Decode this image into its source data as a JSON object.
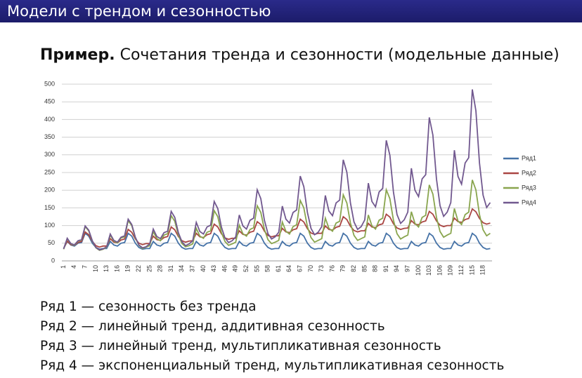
{
  "header": {
    "title": "Модели с трендом и сезонностью"
  },
  "subtitle_bold": "Пример.",
  "subtitle": "Сочетания тренда и сезонности (модельные данные)",
  "notes": [
    "Ряд 1 — сезонность без тренда",
    "Ряд 2 — линейный тренд, аддитивная сезонность",
    "Ряд 3 — линейный тренд, мультипликативная сезонность",
    "Ряд 4 — экспоненциальный тренд, мультипликативная сезонность"
  ],
  "chart_data": {
    "type": "line",
    "categories": [
      1,
      null,
      null,
      4,
      null,
      null,
      7,
      null,
      null,
      10,
      null,
      null,
      13,
      null,
      null,
      16,
      null,
      null,
      19,
      null,
      null,
      22,
      null,
      null,
      25,
      null,
      null,
      28,
      null,
      null,
      31,
      null,
      null,
      34,
      null,
      null,
      37,
      null,
      null,
      40,
      null,
      null,
      43,
      null,
      null,
      46,
      null,
      null,
      49,
      null,
      null,
      52,
      null,
      null,
      55,
      null,
      null,
      58,
      null,
      null,
      61,
      null,
      null,
      64,
      null,
      null,
      67,
      null,
      null,
      70,
      null,
      null,
      73,
      null,
      null,
      76,
      null,
      null,
      79,
      null,
      null,
      82,
      null,
      null,
      85,
      null,
      null,
      88,
      null,
      null,
      91,
      null,
      null,
      94,
      null,
      null,
      97,
      null,
      null,
      100,
      null,
      null,
      103,
      null,
      null,
      106,
      null,
      null,
      109,
      null,
      null,
      112,
      null,
      null,
      115,
      null,
      null,
      118,
      null,
      null
    ],
    "series": [
      {
        "name": "Ряд1",
        "color": "#4572a7",
        "values": [
          35,
          55,
          45,
          42,
          50,
          52,
          78,
          70,
          50,
          38,
          33,
          35,
          35,
          55,
          45,
          42,
          50,
          52,
          78,
          70,
          50,
          38,
          33,
          35,
          35,
          55,
          45,
          42,
          50,
          52,
          78,
          70,
          50,
          38,
          33,
          35,
          35,
          55,
          45,
          42,
          50,
          52,
          78,
          70,
          50,
          38,
          33,
          35,
          35,
          55,
          45,
          42,
          50,
          52,
          78,
          70,
          50,
          38,
          33,
          35,
          35,
          55,
          45,
          42,
          50,
          52,
          78,
          70,
          50,
          38,
          33,
          35,
          35,
          55,
          45,
          42,
          50,
          52,
          78,
          70,
          50,
          38,
          33,
          35,
          35,
          55,
          45,
          42,
          50,
          52,
          78,
          70,
          50,
          38,
          33,
          35,
          35,
          55,
          45,
          42,
          50,
          52,
          78,
          70,
          50,
          38,
          33,
          35,
          35,
          55,
          45,
          42,
          50,
          52,
          78,
          70,
          50,
          38,
          33,
          35
        ]
      },
      {
        "name": "Ряд2",
        "color": "#aa4643",
        "values": [
          35,
          56,
          46,
          44,
          52,
          55,
          82,
          74,
          55,
          43,
          39,
          42,
          42,
          63,
          53,
          51,
          59,
          62,
          89,
          81,
          62,
          50,
          46,
          49,
          49,
          70,
          60,
          58,
          66,
          69,
          96,
          88,
          69,
          57,
          53,
          56,
          57,
          78,
          68,
          66,
          74,
          77,
          104,
          96,
          77,
          65,
          61,
          64,
          64,
          85,
          75,
          73,
          81,
          84,
          111,
          103,
          84,
          72,
          68,
          71,
          71,
          92,
          82,
          80,
          88,
          91,
          118,
          110,
          91,
          79,
          75,
          78,
          78,
          99,
          89,
          87,
          95,
          98,
          125,
          117,
          98,
          86,
          82,
          85,
          85,
          106,
          96,
          94,
          102,
          105,
          132,
          124,
          105,
          93,
          89,
          92,
          93,
          114,
          104,
          102,
          110,
          113,
          140,
          132,
          113,
          101,
          97,
          100,
          100,
          121,
          111,
          109,
          117,
          120,
          147,
          139,
          120,
          108,
          104,
          107
        ]
      },
      {
        "name": "Ряд3",
        "color": "#89a54e",
        "values": [
          33,
          63,
          48,
          44,
          56,
          59,
          97,
          85,
          56,
          37,
          30,
          33,
          39,
          73,
          56,
          51,
          65,
          68,
          114,
          100,
          65,
          44,
          35,
          39,
          43,
          83,
          63,
          57,
          73,
          77,
          128,
          112,
          73,
          49,
          40,
          43,
          48,
          92,
          70,
          64,
          81,
          85,
          142,
          125,
          81,
          55,
          44,
          48,
          53,
          101,
          77,
          70,
          89,
          94,
          156,
          137,
          89,
          60,
          49,
          53,
          58,
          110,
          84,
          76,
          97,
          102,
          171,
          150,
          97,
          66,
          53,
          58,
          63,
          121,
          92,
          84,
          107,
          112,
          187,
          164,
          107,
          72,
          58,
          63,
          68,
          130,
          99,
          90,
          115,
          121,
          201,
          176,
          115,
          77,
          62,
          68,
          73,
          139,
          106,
          96,
          123,
          129,
          215,
          189,
          123,
          83,
          67,
          73,
          78,
          148,
          113,
          103,
          131,
          138,
          229,
          201,
          131,
          88,
          71,
          78
        ]
      },
      {
        "name": "Ряд4",
        "color": "#71588f",
        "values": [
          34,
          64,
          49,
          45,
          57,
          60,
          99,
          87,
          57,
          38,
          31,
          34,
          40,
          76,
          58,
          53,
          67,
          71,
          118,
          103,
          67,
          45,
          37,
          40,
          48,
          90,
          69,
          63,
          80,
          84,
          140,
          123,
          80,
          54,
          43,
          48,
          57,
          109,
          83,
          76,
          96,
          101,
          168,
          148,
          96,
          65,
          52,
          57,
          68,
          130,
          99,
          90,
          115,
          121,
          201,
          176,
          115,
          77,
          62,
          68,
          81,
          155,
          118,
          107,
          137,
          144,
          240,
          210,
          137,
          92,
          74,
          81,
          97,
          185,
          141,
          128,
          164,
          172,
          286,
          251,
          164,
          110,
          89,
          97,
          116,
          220,
          168,
          153,
          195,
          205,
          341,
          299,
          195,
          131,
          106,
          116,
          138,
          262,
          200,
          182,
          232,
          244,
          406,
          356,
          232,
          156,
          126,
          138,
          165,
          313,
          239,
          217,
          277,
          292,
          485,
          425,
          277,
          186,
          151,
          165
        ]
      }
    ],
    "ylim": [
      0,
      500
    ],
    "yticks": [
      0,
      50,
      100,
      150,
      200,
      250,
      300,
      350,
      400,
      450,
      500
    ],
    "grid": true,
    "legend": "right"
  }
}
